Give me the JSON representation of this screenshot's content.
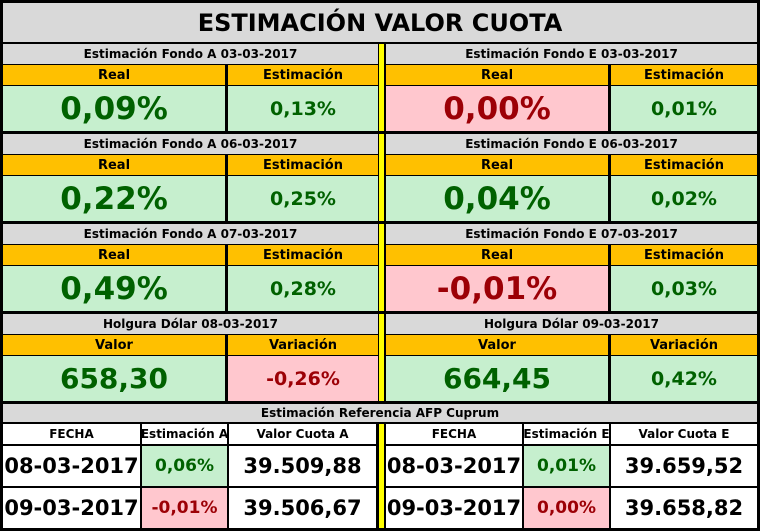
{
  "title": "ESTIMACIÓN VALOR CUOTA",
  "blocks": [
    {
      "left": {
        "header": "Estimación Fondo A  03-03-2017",
        "col1": "Real",
        "col2": "Estimación",
        "val1": "0,09%",
        "val2": "0,13%",
        "val1_status": "positive",
        "val2_status": "positive"
      },
      "right": {
        "header": "Estimación Fondo E  03-03-2017",
        "col1": "Real",
        "col2": "Estimación",
        "val1": "0,00%",
        "val2": "0,01%",
        "val1_status": "negative",
        "val2_status": "positive"
      }
    },
    {
      "left": {
        "header": "Estimación Fondo A  06-03-2017",
        "col1": "Real",
        "col2": "Estimación",
        "val1": "0,22%",
        "val2": "0,25%",
        "val1_status": "positive",
        "val2_status": "positive"
      },
      "right": {
        "header": "Estimación Fondo E  06-03-2017",
        "col1": "Real",
        "col2": "Estimación",
        "val1": "0,04%",
        "val2": "0,02%",
        "val1_status": "positive",
        "val2_status": "positive"
      }
    },
    {
      "left": {
        "header": "Estimación Fondo A  07-03-2017",
        "col1": "Real",
        "col2": "Estimación",
        "val1": "0,49%",
        "val2": "0,28%",
        "val1_status": "positive",
        "val2_status": "positive"
      },
      "right": {
        "header": "Estimación Fondo E  07-03-2017",
        "col1": "Real",
        "col2": "Estimación",
        "val1": "-0,01%",
        "val2": "0,03%",
        "val1_status": "negative",
        "val2_status": "positive"
      }
    },
    {
      "left": {
        "header": "Holgura Dólar  08-03-2017",
        "col1": "Valor",
        "col2": "Variación",
        "val1": "658,30",
        "val2": "-0,26%",
        "val1_status": "positive",
        "val2_status": "negative"
      },
      "right": {
        "header": "Holgura Dólar  09-03-2017",
        "col1": "Valor",
        "col2": "Variación",
        "val1": "664,45",
        "val2": "0,42%",
        "val1_status": "positive",
        "val2_status": "positive"
      }
    }
  ],
  "reference": {
    "header": "Estimación Referencia AFP Cuprum",
    "left_cols": [
      "FECHA",
      "Estimación A",
      "Valor Cuota A"
    ],
    "right_cols": [
      "FECHA",
      "Estimación E",
      "Valor Cuota E"
    ],
    "left_rows": [
      {
        "fecha": "08-03-2017",
        "est": "0,06%",
        "valor": "39.509,88",
        "est_status": "positive"
      },
      {
        "fecha": "09-03-2017",
        "est": "-0,01%",
        "valor": "39.506,67",
        "est_status": "negative"
      }
    ],
    "right_rows": [
      {
        "fecha": "08-03-2017",
        "est": "0,01%",
        "valor": "39.659,52",
        "est_status": "positive"
      },
      {
        "fecha": "09-03-2017",
        "est": "0,00%",
        "valor": "39.658,82",
        "est_status": "negative"
      }
    ]
  },
  "colors": {
    "header_gray": "#d9d9d9",
    "column_orange": "#ffc000",
    "positive_fill": "#c6efce",
    "positive_text": "#006100",
    "negative_fill": "#ffc7ce",
    "negative_text": "#9c0006",
    "separator_yellow": "#ffff00"
  }
}
